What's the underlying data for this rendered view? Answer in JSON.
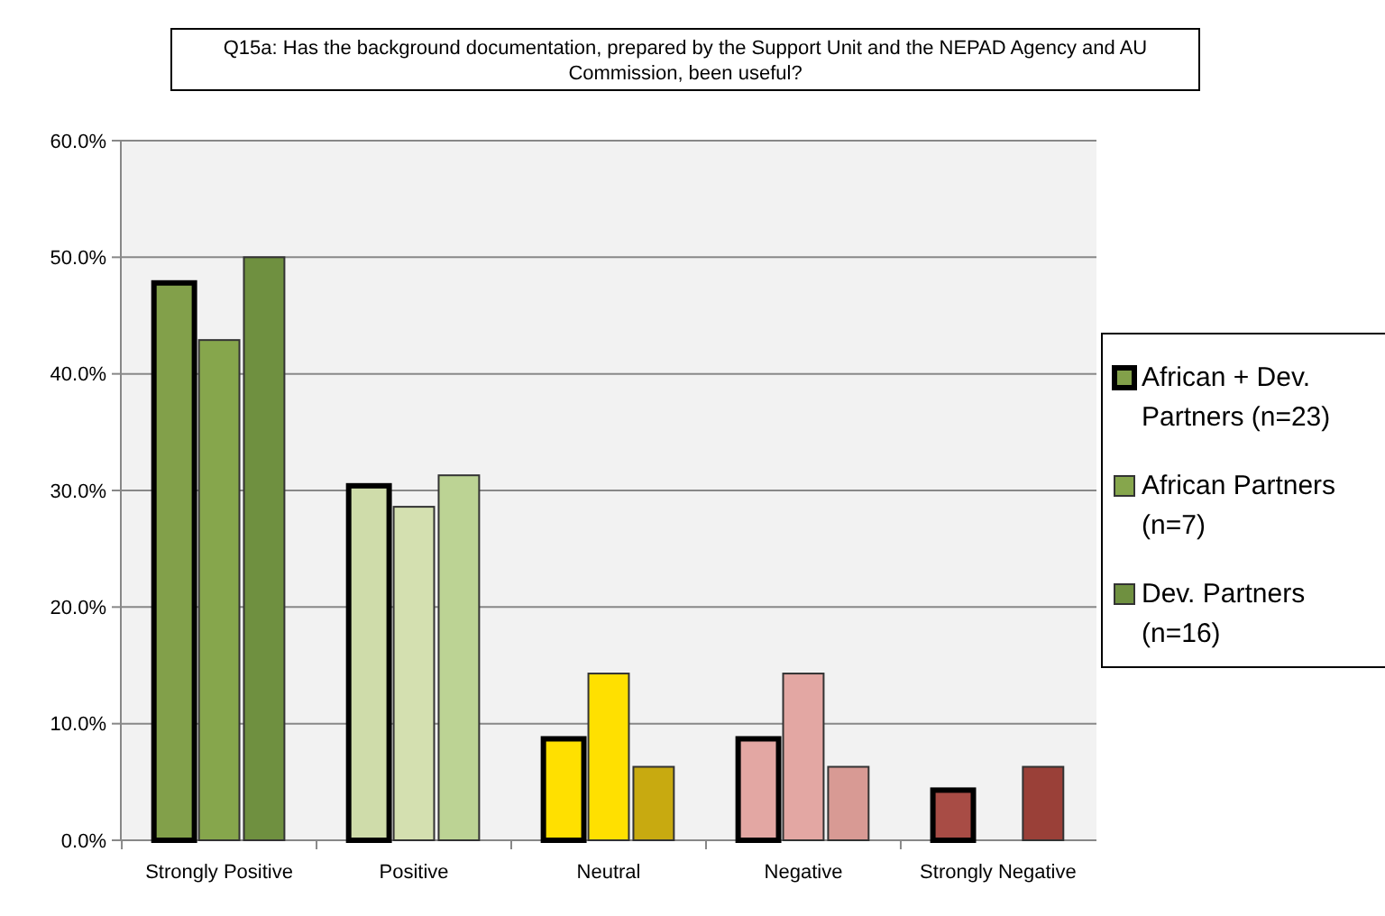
{
  "chart_data": {
    "type": "bar",
    "title": "Q15a: Has the background documentation, prepared by the Support Unit and the NEPAD Agency and AU Commission, been useful?",
    "categories": [
      "Strongly Positive",
      "Positive",
      "Neutral",
      "Negative",
      "Strongly Negative"
    ],
    "series": [
      {
        "name": "African + Dev. Partners (n=23)",
        "color": "#82a04a",
        "colors": [
          "#82a04a",
          "#cfdcaa",
          "#ffe000",
          "#e3a7a3",
          "#a84c45"
        ],
        "values": [
          47.8,
          30.4,
          8.7,
          8.7,
          4.3
        ]
      },
      {
        "name": "African Partners (n=7)",
        "color": "#86a64c",
        "colors": [
          "#86a64c",
          "#d4e0b0",
          "#ffe000",
          "#e3a7a3",
          "#a84c45"
        ],
        "values": [
          42.9,
          28.6,
          14.3,
          14.3,
          0
        ]
      },
      {
        "name": "Dev. Partners (n=16)",
        "color": "#6f9040",
        "colors": [
          "#6f9040",
          "#bcd394",
          "#c8aa10",
          "#d89a94",
          "#9a4038"
        ],
        "values": [
          50,
          31.3,
          6.3,
          6.3,
          6.3
        ]
      }
    ],
    "ylim": [
      0,
      60
    ],
    "yticks": [
      {
        "value": 0,
        "label": "0.0%"
      },
      {
        "value": 10,
        "label": "10.0%"
      },
      {
        "value": 20,
        "label": "20.0%"
      },
      {
        "value": 30,
        "label": "30.0%"
      },
      {
        "value": 40,
        "label": "40.0%"
      },
      {
        "value": 50,
        "label": "50.0%"
      },
      {
        "value": 60,
        "label": "60.0%"
      }
    ],
    "grid": "y",
    "legend": "right"
  }
}
